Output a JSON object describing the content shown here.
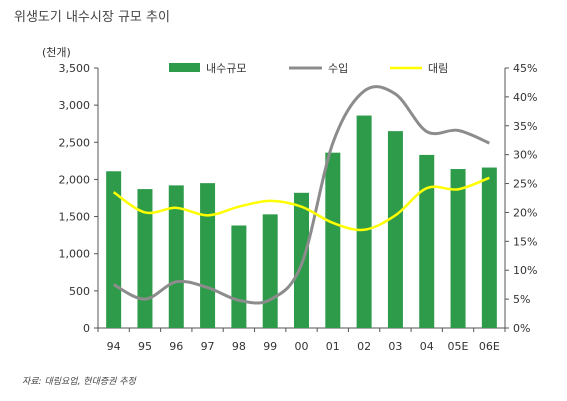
{
  "title": "위생도기 내수시장 규모 추이",
  "unit_label": "(천개)",
  "source": "자료: 대림요업, 현대증권 추정",
  "colors": {
    "bar": "#2e9b4b",
    "import_line": "#8c8c8c",
    "daelim_line": "#ffff00"
  },
  "chart_data": {
    "type": "bar",
    "categories": [
      "94",
      "95",
      "96",
      "97",
      "98",
      "99",
      "00",
      "01",
      "02",
      "03",
      "04",
      "05E",
      "06E"
    ],
    "series": [
      {
        "name": "내수규모",
        "type": "bar",
        "axis": "left",
        "values": [
          2110,
          1870,
          1920,
          1950,
          1380,
          1530,
          1820,
          2360,
          2860,
          2650,
          2330,
          2140,
          2160
        ]
      },
      {
        "name": "수입",
        "type": "line",
        "axis": "right",
        "values": [
          7.5,
          5.0,
          8.0,
          7.0,
          4.8,
          4.9,
          11.0,
          32.0,
          41.0,
          40.5,
          34.0,
          34.2,
          32.0
        ]
      },
      {
        "name": "대림",
        "type": "line",
        "axis": "right",
        "values": [
          23.5,
          20.0,
          20.8,
          19.5,
          21.0,
          22.0,
          21.0,
          18.2,
          17.0,
          19.5,
          24.2,
          24.0,
          26.0
        ]
      }
    ],
    "y_left": {
      "min": 0,
      "max": 3500,
      "ticks": [
        "0",
        "500",
        "1,000",
        "1,500",
        "2,000",
        "2,500",
        "3,000",
        "3,500"
      ]
    },
    "y_right": {
      "min": 0,
      "max": 45,
      "ticks": [
        "0%",
        "5%",
        "10%",
        "15%",
        "20%",
        "25%",
        "30%",
        "35%",
        "40%",
        "45%"
      ]
    },
    "legend_position": "top",
    "grid": false
  }
}
